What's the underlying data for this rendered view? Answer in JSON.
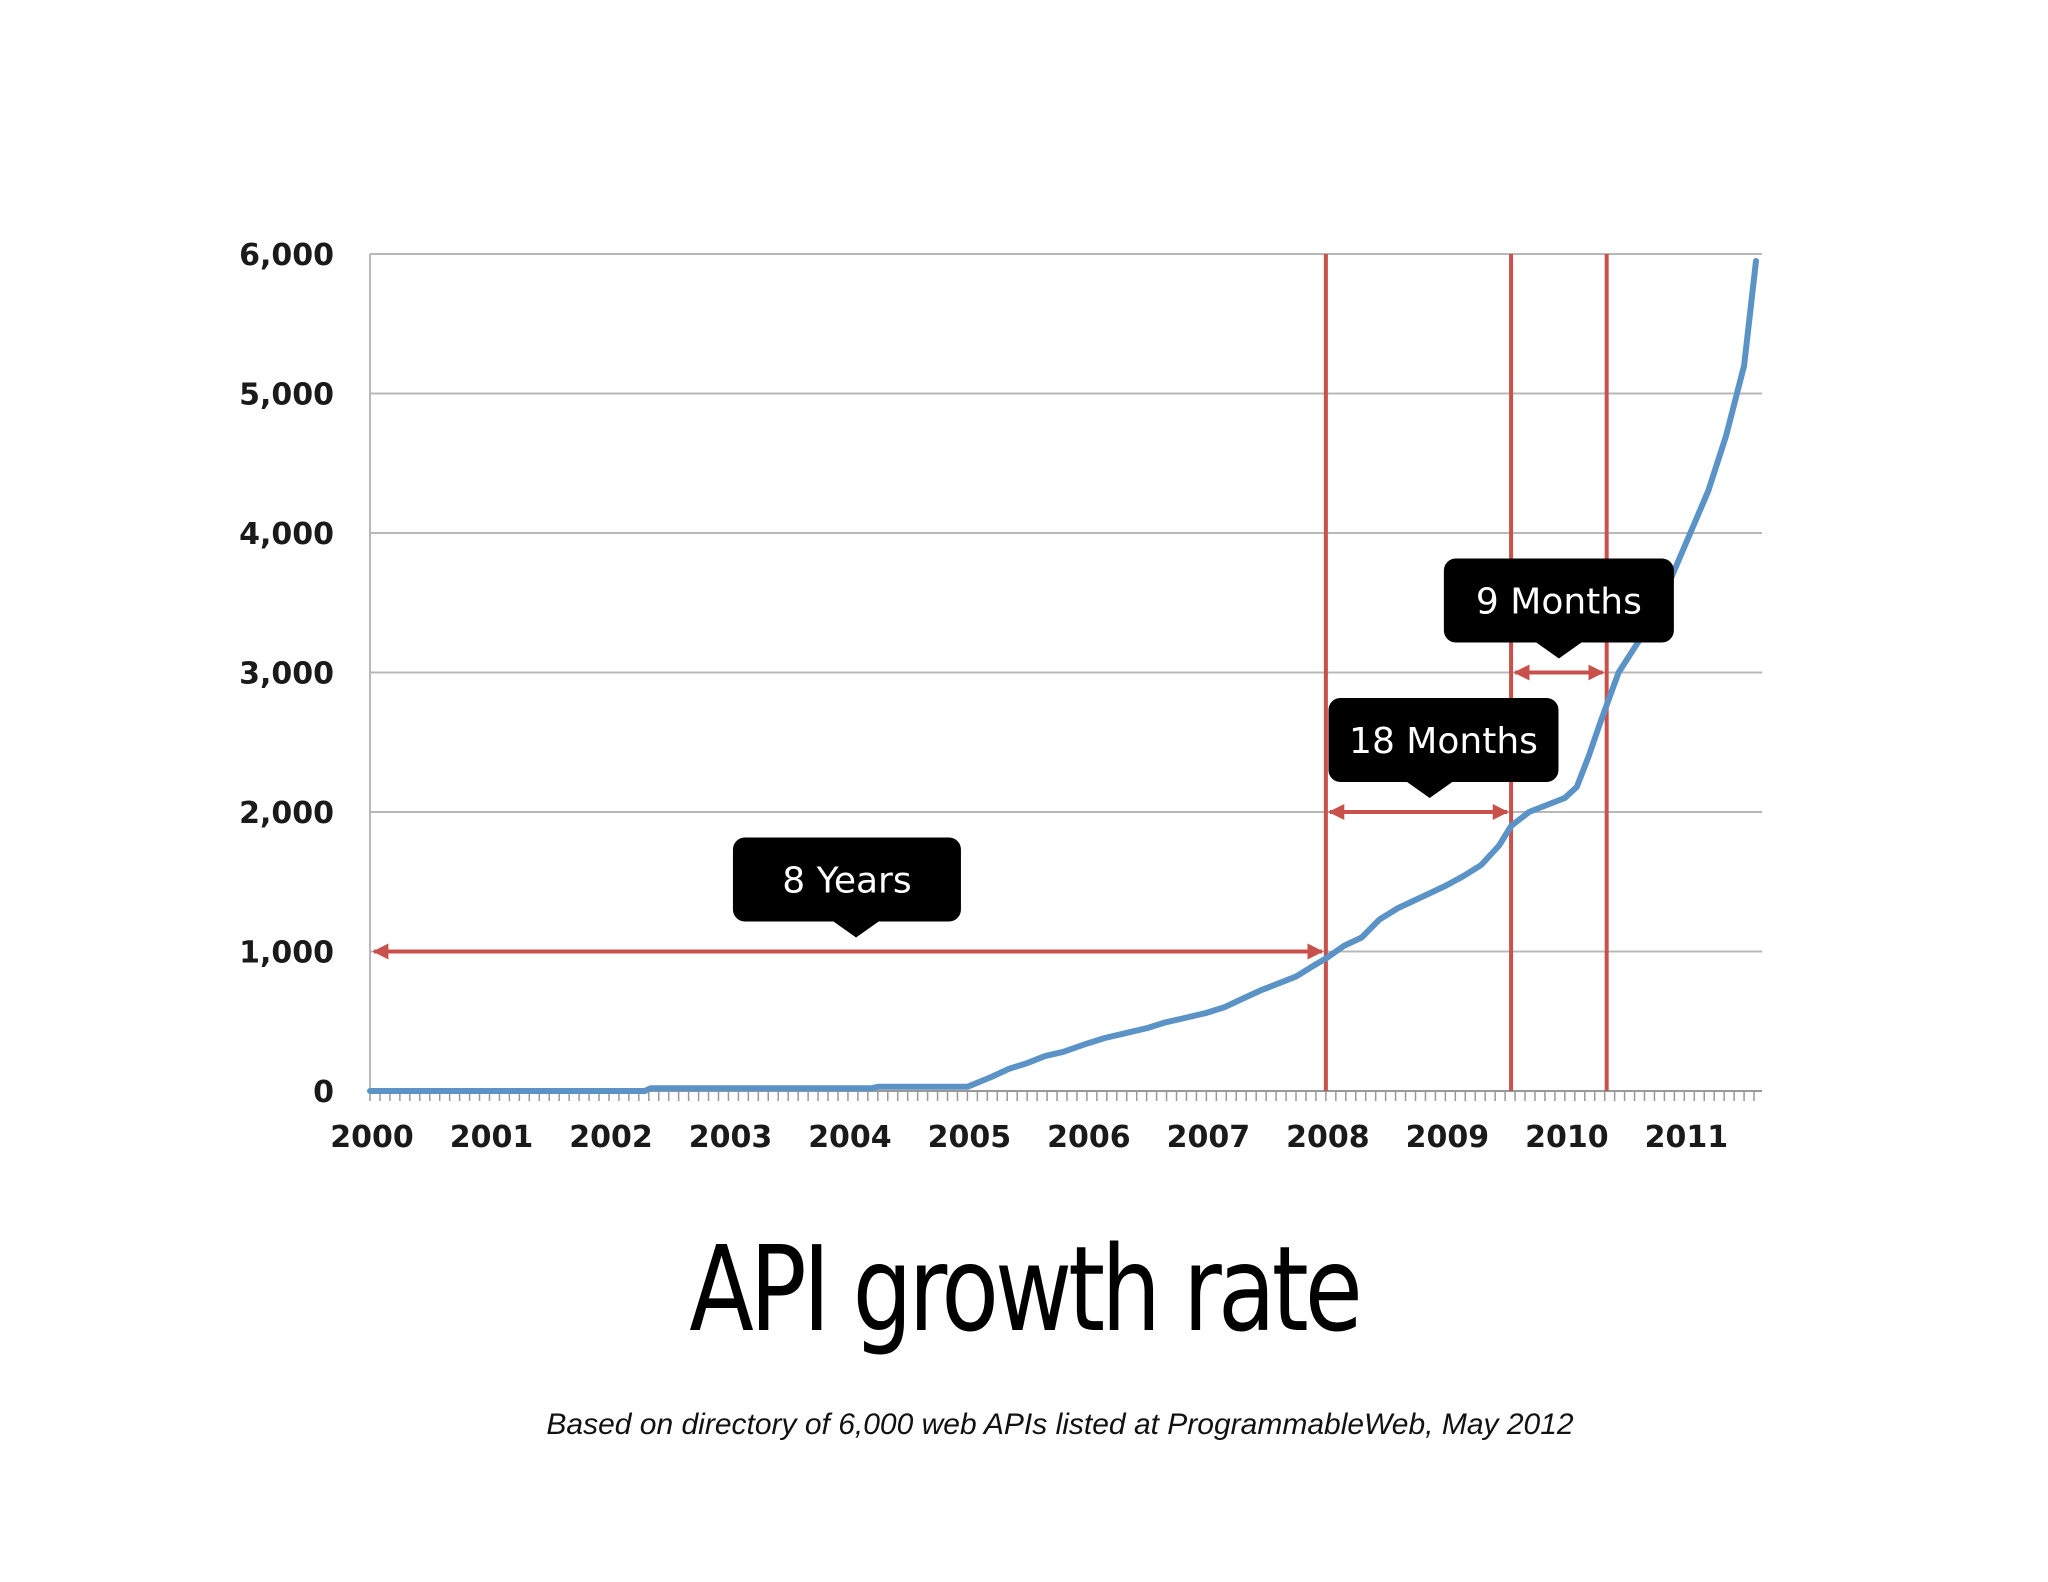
{
  "slide": {
    "title": "API growth rate",
    "caption": "Based on directory of 6,000 web APIs listed at ProgrammableWeb, May 2012"
  },
  "colors": {
    "line": "#5b93c7",
    "marker": "#c9514c",
    "grid": "#b8b8b8",
    "callout_bg": "#000000",
    "callout_text": "#ffffff"
  },
  "chart_data": {
    "type": "line",
    "title": "",
    "xlabel": "",
    "ylabel": "",
    "xlim": [
      2000,
      2011.65
    ],
    "ylim": [
      0,
      6000
    ],
    "grid": "horizontal",
    "x_tick_labels": [
      "2000",
      "2001",
      "2002",
      "2003",
      "2004",
      "2005",
      "2006",
      "2007",
      "2008",
      "2009",
      "2010",
      "2011"
    ],
    "x_ticks": [
      2000,
      2001,
      2002,
      2003,
      2004,
      2005,
      2006,
      2007,
      2008,
      2009,
      2010,
      2011
    ],
    "y_tick_labels": [
      "0",
      "1,000",
      "2,000",
      "3,000",
      "4,000",
      "5,000",
      "6,000"
    ],
    "y_ticks": [
      0,
      1000,
      2000,
      3000,
      4000,
      5000,
      6000
    ],
    "series": [
      {
        "x": [
          2000,
          2002.3,
          2002.35,
          2004.2,
          2004.25,
          2005.0,
          2005.2,
          2005.35,
          2005.5,
          2005.65,
          2005.8,
          2006.0,
          2006.15,
          2006.35,
          2006.5,
          2006.65,
          2006.8,
          2007.0,
          2007.15,
          2007.3,
          2007.45,
          2007.6,
          2007.75,
          2007.9,
          2008.0,
          2008.15,
          2008.3,
          2008.45,
          2008.6,
          2008.8,
          2009.0,
          2009.15,
          2009.3,
          2009.45,
          2009.55,
          2009.7,
          2009.85,
          2010.0,
          2010.1,
          2010.2,
          2010.3,
          2010.45,
          2010.6,
          2010.75,
          2010.9,
          2011.05,
          2011.2,
          2011.35,
          2011.5,
          2011.6
        ],
        "y": [
          0,
          0,
          20,
          20,
          30,
          30,
          100,
          160,
          200,
          250,
          280,
          340,
          380,
          420,
          450,
          490,
          520,
          560,
          600,
          660,
          720,
          770,
          820,
          900,
          950,
          1040,
          1100,
          1230,
          1310,
          1390,
          1470,
          1540,
          1620,
          1760,
          1900,
          2000,
          2050,
          2100,
          2180,
          2400,
          2650,
          3000,
          3200,
          3400,
          3700,
          4000,
          4300,
          4700,
          5200,
          5950
        ]
      }
    ],
    "reference_lines": [
      2008.0,
      2009.55,
      2010.35
    ],
    "spans": [
      {
        "label": "8 Years",
        "from": 2000,
        "to": 2008.0,
        "y": 1000
      },
      {
        "label": "18 Months",
        "from": 2008.0,
        "to": 2009.55,
        "y": 2000
      },
      {
        "label": "9 Months",
        "from": 2009.55,
        "to": 2010.35,
        "y": 3000
      }
    ]
  }
}
